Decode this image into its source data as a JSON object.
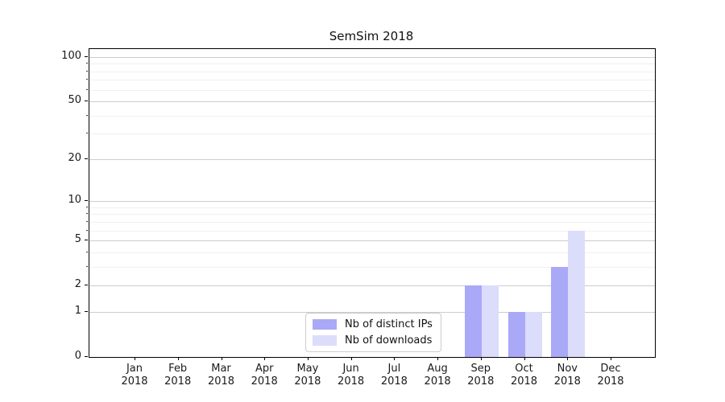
{
  "chart_data": {
    "type": "bar",
    "title": "SemSim 2018",
    "categories": [
      "Jan",
      "Feb",
      "Mar",
      "Apr",
      "May",
      "Jun",
      "Jul",
      "Aug",
      "Sep",
      "Oct",
      "Nov",
      "Dec"
    ],
    "category_year": "2018",
    "series": [
      {
        "name": "Nb of distinct IPs",
        "color": "#a9a9f8",
        "values": [
          0,
          0,
          0,
          0,
          0,
          0,
          0,
          0,
          2,
          1,
          3,
          0
        ]
      },
      {
        "name": "Nb of downloads",
        "color": "#dcdcfb",
        "values": [
          0,
          0,
          0,
          0,
          0,
          0,
          0,
          0,
          2,
          1,
          6,
          0
        ]
      }
    ],
    "yscale": "log1p",
    "ylim": [
      0,
      113
    ],
    "yticks": [
      0,
      1,
      2,
      5,
      10,
      20,
      50,
      100
    ],
    "minor_yticks": [
      3,
      4,
      6,
      7,
      8,
      9,
      30,
      40,
      60,
      70,
      80,
      90
    ],
    "grid": "horizontal",
    "legend_position": "bottom-center-inside",
    "colors": {
      "major_grid": "#cccccc",
      "minor_grid": "#f0f0f0",
      "axis": "#000000",
      "background": "#ffffff"
    }
  }
}
